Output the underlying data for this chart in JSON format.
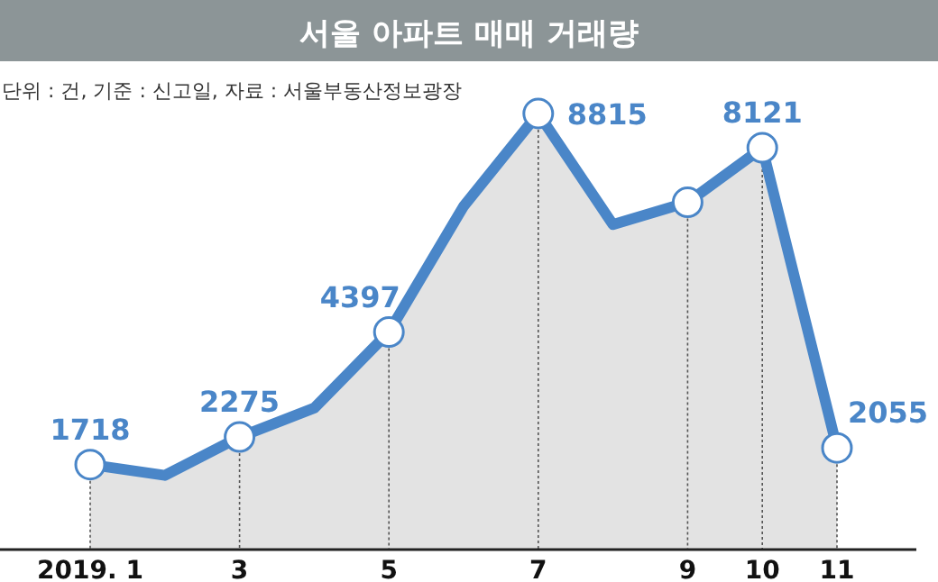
{
  "chart_data": {
    "type": "area",
    "title": "서울 아파트 매매 거래량",
    "subtitle": "단위 : 건, 기준 : 신고일, 자료 : 서울부동산정보광장",
    "categories": [
      "2019. 1",
      null,
      "3",
      null,
      "5",
      null,
      "7",
      null,
      "9",
      "10",
      "11"
    ],
    "series": [
      {
        "color": "#4a86c8",
        "values": [
          1718,
          1500,
          2275,
          2860,
          4397,
          6940,
          8815,
          6570,
          7020,
          8121,
          2055
        ],
        "value_labels": [
          "1718",
          null,
          "2275",
          null,
          "4397",
          null,
          "8815",
          null,
          null,
          "8121",
          "2055"
        ]
      }
    ],
    "marker": "circle",
    "grid": "x"
  }
}
